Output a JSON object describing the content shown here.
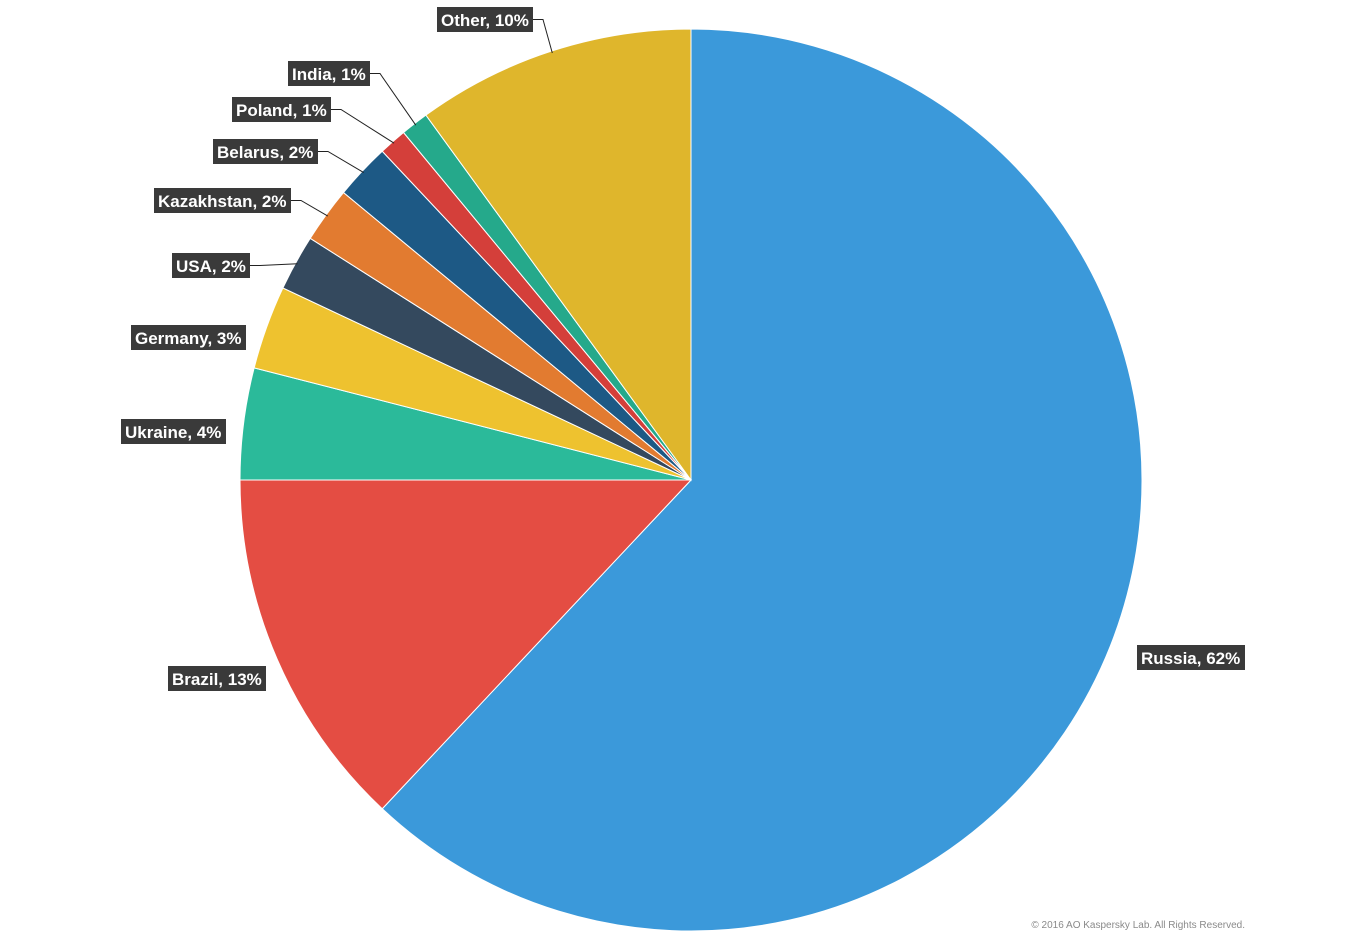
{
  "chart_data": {
    "type": "pie",
    "title": "",
    "slices": [
      {
        "name": "Russia",
        "value": 62,
        "label": "Russia, 62%",
        "color": "#3b99da"
      },
      {
        "name": "Brazil",
        "value": 13,
        "label": "Brazil, 13%",
        "color": "#e44d43"
      },
      {
        "name": "Ukraine",
        "value": 4,
        "label": "Ukraine, 4%",
        "color": "#2bba9a"
      },
      {
        "name": "Germany",
        "value": 3,
        "label": "Germany, 3%",
        "color": "#eec22f"
      },
      {
        "name": "USA",
        "value": 2,
        "label": "USA, 2%",
        "color": "#34495e"
      },
      {
        "name": "Kazakhstan",
        "value": 2,
        "label": "Kazakhstan, 2%",
        "color": "#e27b30"
      },
      {
        "name": "Belarus",
        "value": 2,
        "label": "Belarus, 2%",
        "color": "#1d5985"
      },
      {
        "name": "Poland",
        "value": 1,
        "label": "Poland, 1%",
        "color": "#d43f3a"
      },
      {
        "name": "India",
        "value": 1,
        "label": "India, 1%",
        "color": "#25a98b"
      },
      {
        "name": "Other",
        "value": 10,
        "label": "Other, 10%",
        "color": "#dfb62c"
      }
    ]
  },
  "footer": {
    "copyright": "© 2016 AO Kaspersky Lab. All Rights Reserved."
  }
}
